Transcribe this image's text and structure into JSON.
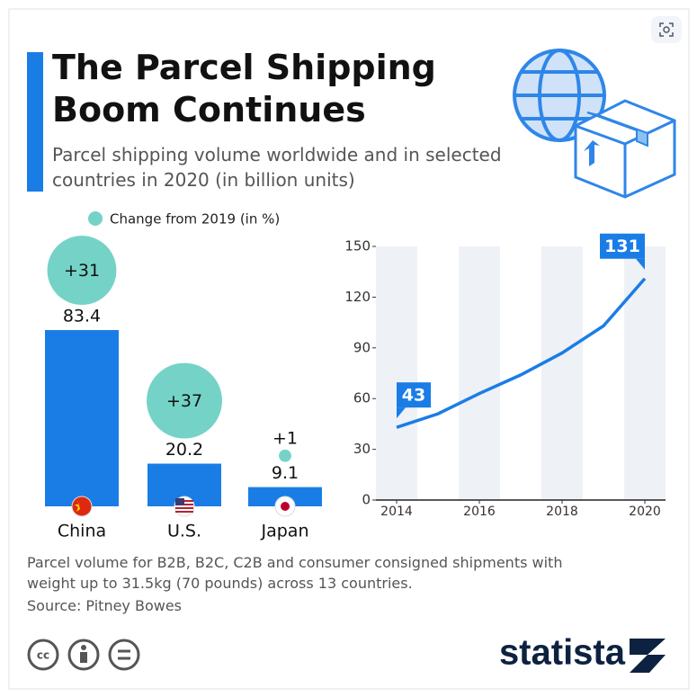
{
  "header": {
    "title": "The Parcel Shipping Boom Continues",
    "subtitle": "Parcel shipping volume worldwide and in selected countries in 2020 (in billion units)"
  },
  "chart_data": [
    {
      "type": "bar",
      "categories": [
        "China",
        "U.S.",
        "Japan"
      ],
      "values": [
        83.4,
        20.2,
        9.1
      ],
      "color": "#1a7de6",
      "bubbles": {
        "name": "Change from 2019 (in %)",
        "color": "#74d3c6",
        "values": [
          31,
          37,
          1
        ],
        "value_labels": [
          "+31",
          "+37",
          "+1"
        ]
      }
    },
    {
      "type": "line",
      "x": [
        2014,
        2015,
        2016,
        2017,
        2018,
        2019,
        2020
      ],
      "values": [
        43,
        51,
        63,
        74,
        87,
        103,
        131
      ],
      "color": "#1a7de6",
      "xlim": [
        2013.5,
        2020.5
      ],
      "ylim": [
        0,
        150
      ],
      "xticks": [
        2014,
        2016,
        2018,
        2020
      ],
      "yticks": [
        0,
        30,
        60,
        90,
        120,
        150
      ]
    }
  ],
  "footer": {
    "note": "Parcel volume for B2B, B2C, C2B and consumer consigned shipments with weight up to 31.5kg (70 pounds) across 13 countries.",
    "source": "Source: Pitney Bowes",
    "brand": "statista"
  }
}
